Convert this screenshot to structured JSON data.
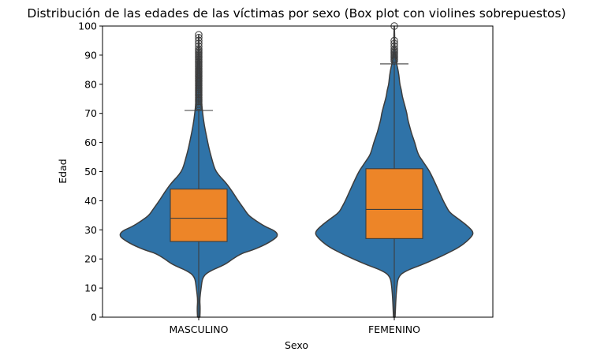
{
  "chart_data": {
    "type": "violin",
    "title": "Distribución de las edades de las víctimas por sexo (Box plot con violines sobrepuestos)",
    "xlabel": "Sexo",
    "ylabel": "Edad",
    "ylim": [
      0,
      100
    ],
    "yticks": [
      0,
      10,
      20,
      30,
      40,
      50,
      60,
      70,
      80,
      90,
      100
    ],
    "categories": [
      "MASCULINO",
      "FEMENINO"
    ],
    "grid": false,
    "colors": {
      "violin": "#2f73a8",
      "box": "#ed8528",
      "line": "#3d3d3d"
    },
    "violins": [
      {
        "category": "MASCULINO",
        "profile": [
          [
            0,
            0.015
          ],
          [
            3,
            0.02
          ],
          [
            6,
            0.012
          ],
          [
            10,
            0.03
          ],
          [
            14,
            0.05
          ],
          [
            16,
            0.15
          ],
          [
            18,
            0.33
          ],
          [
            20,
            0.43
          ],
          [
            22,
            0.55
          ],
          [
            23,
            0.68
          ],
          [
            25,
            0.85
          ],
          [
            27,
            0.97
          ],
          [
            28,
            1.0
          ],
          [
            29,
            0.99
          ],
          [
            30,
            0.94
          ],
          [
            31,
            0.85
          ],
          [
            33,
            0.73
          ],
          [
            35,
            0.63
          ],
          [
            37,
            0.58
          ],
          [
            40,
            0.5
          ],
          [
            43,
            0.43
          ],
          [
            46,
            0.35
          ],
          [
            48,
            0.28
          ],
          [
            50,
            0.22
          ],
          [
            52,
            0.19
          ],
          [
            55,
            0.16
          ],
          [
            58,
            0.13
          ],
          [
            62,
            0.1
          ],
          [
            66,
            0.07
          ],
          [
            70,
            0.05
          ],
          [
            74,
            0.035
          ],
          [
            78,
            0.025
          ],
          [
            84,
            0.016
          ],
          [
            90,
            0.01
          ],
          [
            97,
            0.003
          ]
        ],
        "whisker_low": 0,
        "q1": 26,
        "median": 34,
        "q3": 44,
        "whisker_high": 71,
        "outliers": [
          72,
          72.5,
          73,
          73.5,
          74,
          74.5,
          75,
          75.5,
          76,
          76.5,
          77,
          77.5,
          78,
          78.5,
          79,
          79.5,
          80,
          80.5,
          81,
          81.5,
          82,
          82.5,
          83,
          83.5,
          84,
          84.5,
          85,
          85.5,
          86,
          86.5,
          87,
          87.5,
          88,
          88.5,
          89,
          89.5,
          90,
          90.5,
          91,
          91.5,
          92,
          93,
          94,
          95,
          96,
          97
        ]
      },
      {
        "category": "FEMENINO",
        "profile": [
          [
            0,
            0.01
          ],
          [
            3,
            0.015
          ],
          [
            6,
            0.02
          ],
          [
            10,
            0.03
          ],
          [
            14,
            0.05
          ],
          [
            16,
            0.15
          ],
          [
            18,
            0.35
          ],
          [
            20,
            0.52
          ],
          [
            22,
            0.68
          ],
          [
            24,
            0.82
          ],
          [
            26,
            0.92
          ],
          [
            28,
            0.99
          ],
          [
            29,
            1.0
          ],
          [
            30,
            0.98
          ],
          [
            32,
            0.9
          ],
          [
            34,
            0.8
          ],
          [
            36,
            0.7
          ],
          [
            38,
            0.66
          ],
          [
            40,
            0.62
          ],
          [
            43,
            0.57
          ],
          [
            46,
            0.52
          ],
          [
            50,
            0.45
          ],
          [
            52,
            0.4
          ],
          [
            54,
            0.35
          ],
          [
            56,
            0.3
          ],
          [
            60,
            0.26
          ],
          [
            63,
            0.22
          ],
          [
            65,
            0.2
          ],
          [
            68,
            0.17
          ],
          [
            70,
            0.16
          ],
          [
            72,
            0.14
          ],
          [
            74,
            0.12
          ],
          [
            76,
            0.1
          ],
          [
            78,
            0.09
          ],
          [
            80,
            0.07
          ],
          [
            83,
            0.06
          ],
          [
            86,
            0.04
          ],
          [
            88,
            0.02
          ],
          [
            92,
            0.008
          ],
          [
            100,
            0.002
          ]
        ],
        "whisker_low": 0,
        "q1": 27,
        "median": 37,
        "q3": 51,
        "whisker_high": 87,
        "outliers": [
          88,
          88.5,
          89,
          89.5,
          90,
          90.5,
          91,
          91.5,
          92,
          93,
          94,
          95,
          100
        ]
      }
    ]
  }
}
